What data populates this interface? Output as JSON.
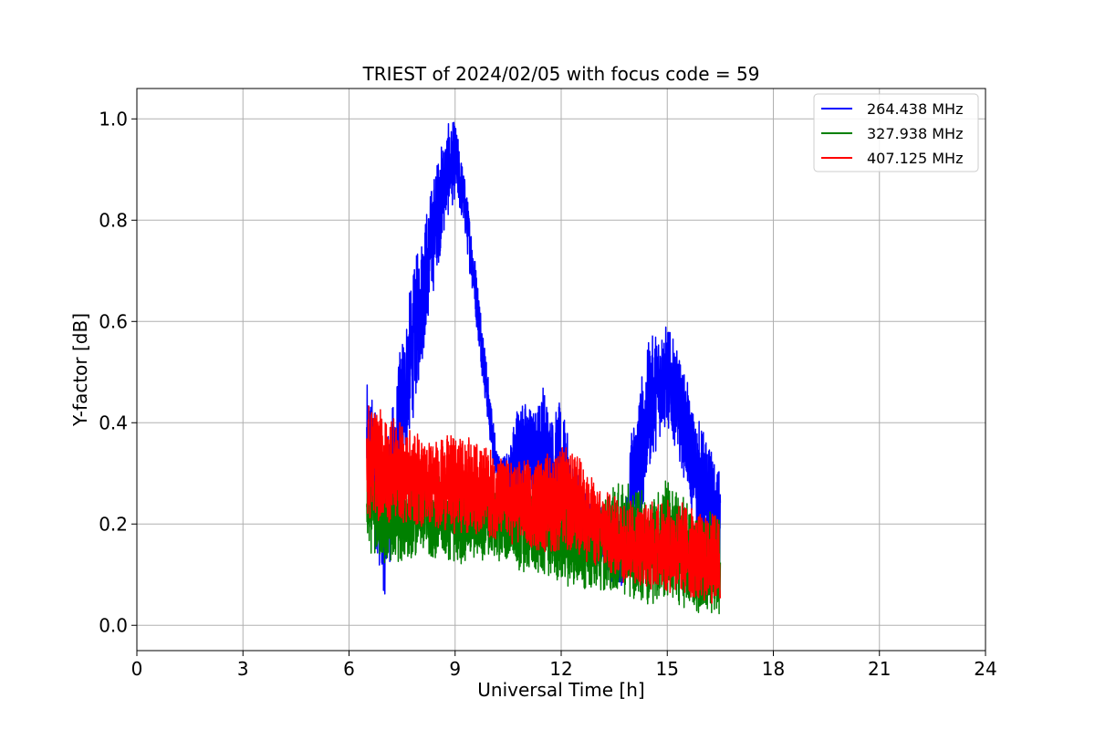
{
  "chart_data": {
    "type": "line",
    "title": "TRIEST of 2024/02/05 with focus code = 59",
    "xlabel": "Universal Time [h]",
    "ylabel": "Y-factor [dB]",
    "xlim": [
      0,
      24
    ],
    "ylim": [
      -0.05,
      1.06
    ],
    "xticks": [
      0,
      3,
      6,
      9,
      12,
      15,
      18,
      21,
      24
    ],
    "yticks": [
      0.0,
      0.2,
      0.4,
      0.6,
      0.8,
      1.0
    ],
    "ytick_labels": [
      "0.0",
      "0.2",
      "0.4",
      "0.6",
      "0.8",
      "1.0"
    ],
    "grid": true,
    "legend_position": "top-right",
    "series": [
      {
        "name": "264.438 MHz",
        "color": "#0000ff",
        "envelope_x": [
          6.5,
          6.75,
          7.0,
          7.25,
          7.5,
          7.75,
          8.0,
          8.25,
          8.5,
          8.75,
          9.0,
          9.25,
          9.5,
          9.75,
          10.0,
          10.25,
          10.5,
          10.75,
          11.0,
          11.25,
          11.5,
          11.75,
          12.0,
          12.25,
          12.5,
          12.75,
          13.0,
          13.25,
          13.5,
          13.75,
          14.0,
          14.25,
          14.5,
          14.75,
          15.0,
          15.25,
          15.5,
          15.75,
          16.0,
          16.25,
          16.5
        ],
        "envelope_low": [
          0.25,
          0.15,
          0.05,
          0.16,
          0.27,
          0.38,
          0.48,
          0.6,
          0.7,
          0.79,
          0.84,
          0.78,
          0.65,
          0.5,
          0.35,
          0.25,
          0.2,
          0.22,
          0.25,
          0.24,
          0.22,
          0.2,
          0.18,
          0.16,
          0.15,
          0.14,
          0.12,
          0.1,
          0.08,
          0.07,
          0.12,
          0.2,
          0.3,
          0.36,
          0.38,
          0.35,
          0.28,
          0.2,
          0.12,
          0.08,
          0.06
        ],
        "envelope_high": [
          0.48,
          0.45,
          0.35,
          0.45,
          0.58,
          0.68,
          0.77,
          0.85,
          0.93,
          0.99,
          1.0,
          0.9,
          0.77,
          0.62,
          0.45,
          0.33,
          0.35,
          0.45,
          0.45,
          0.43,
          0.49,
          0.42,
          0.45,
          0.35,
          0.3,
          0.27,
          0.25,
          0.22,
          0.22,
          0.22,
          0.4,
          0.5,
          0.57,
          0.6,
          0.6,
          0.55,
          0.5,
          0.43,
          0.4,
          0.35,
          0.3
        ]
      },
      {
        "name": "327.938 MHz",
        "color": "#008000",
        "envelope_x": [
          6.5,
          7.0,
          7.5,
          8.0,
          8.5,
          9.0,
          9.5,
          10.0,
          10.5,
          11.0,
          11.5,
          12.0,
          12.5,
          13.0,
          13.5,
          14.0,
          14.5,
          15.0,
          15.5,
          16.0,
          16.5
        ],
        "envelope_low": [
          0.15,
          0.11,
          0.12,
          0.14,
          0.13,
          0.12,
          0.12,
          0.13,
          0.12,
          0.1,
          0.09,
          0.08,
          0.07,
          0.07,
          0.06,
          0.05,
          0.04,
          0.04,
          0.03,
          0.02,
          0.02
        ],
        "envelope_high": [
          0.33,
          0.3,
          0.3,
          0.3,
          0.3,
          0.28,
          0.3,
          0.28,
          0.27,
          0.27,
          0.27,
          0.27,
          0.25,
          0.24,
          0.28,
          0.28,
          0.26,
          0.3,
          0.25,
          0.23,
          0.22
        ]
      },
      {
        "name": "407.125 MHz",
        "color": "#ff0000",
        "envelope_x": [
          6.5,
          7.0,
          7.5,
          8.0,
          8.5,
          9.0,
          9.5,
          10.0,
          10.5,
          11.0,
          11.5,
          12.0,
          12.5,
          13.0,
          13.5,
          14.0,
          14.5,
          15.0,
          15.5,
          16.0,
          16.5
        ],
        "envelope_low": [
          0.2,
          0.2,
          0.2,
          0.19,
          0.19,
          0.18,
          0.18,
          0.17,
          0.16,
          0.15,
          0.14,
          0.14,
          0.13,
          0.11,
          0.09,
          0.08,
          0.07,
          0.06,
          0.05,
          0.04,
          0.03
        ],
        "envelope_high": [
          0.45,
          0.42,
          0.4,
          0.38,
          0.37,
          0.38,
          0.37,
          0.35,
          0.33,
          0.33,
          0.34,
          0.36,
          0.34,
          0.28,
          0.26,
          0.25,
          0.25,
          0.25,
          0.25,
          0.22,
          0.23
        ]
      }
    ]
  }
}
